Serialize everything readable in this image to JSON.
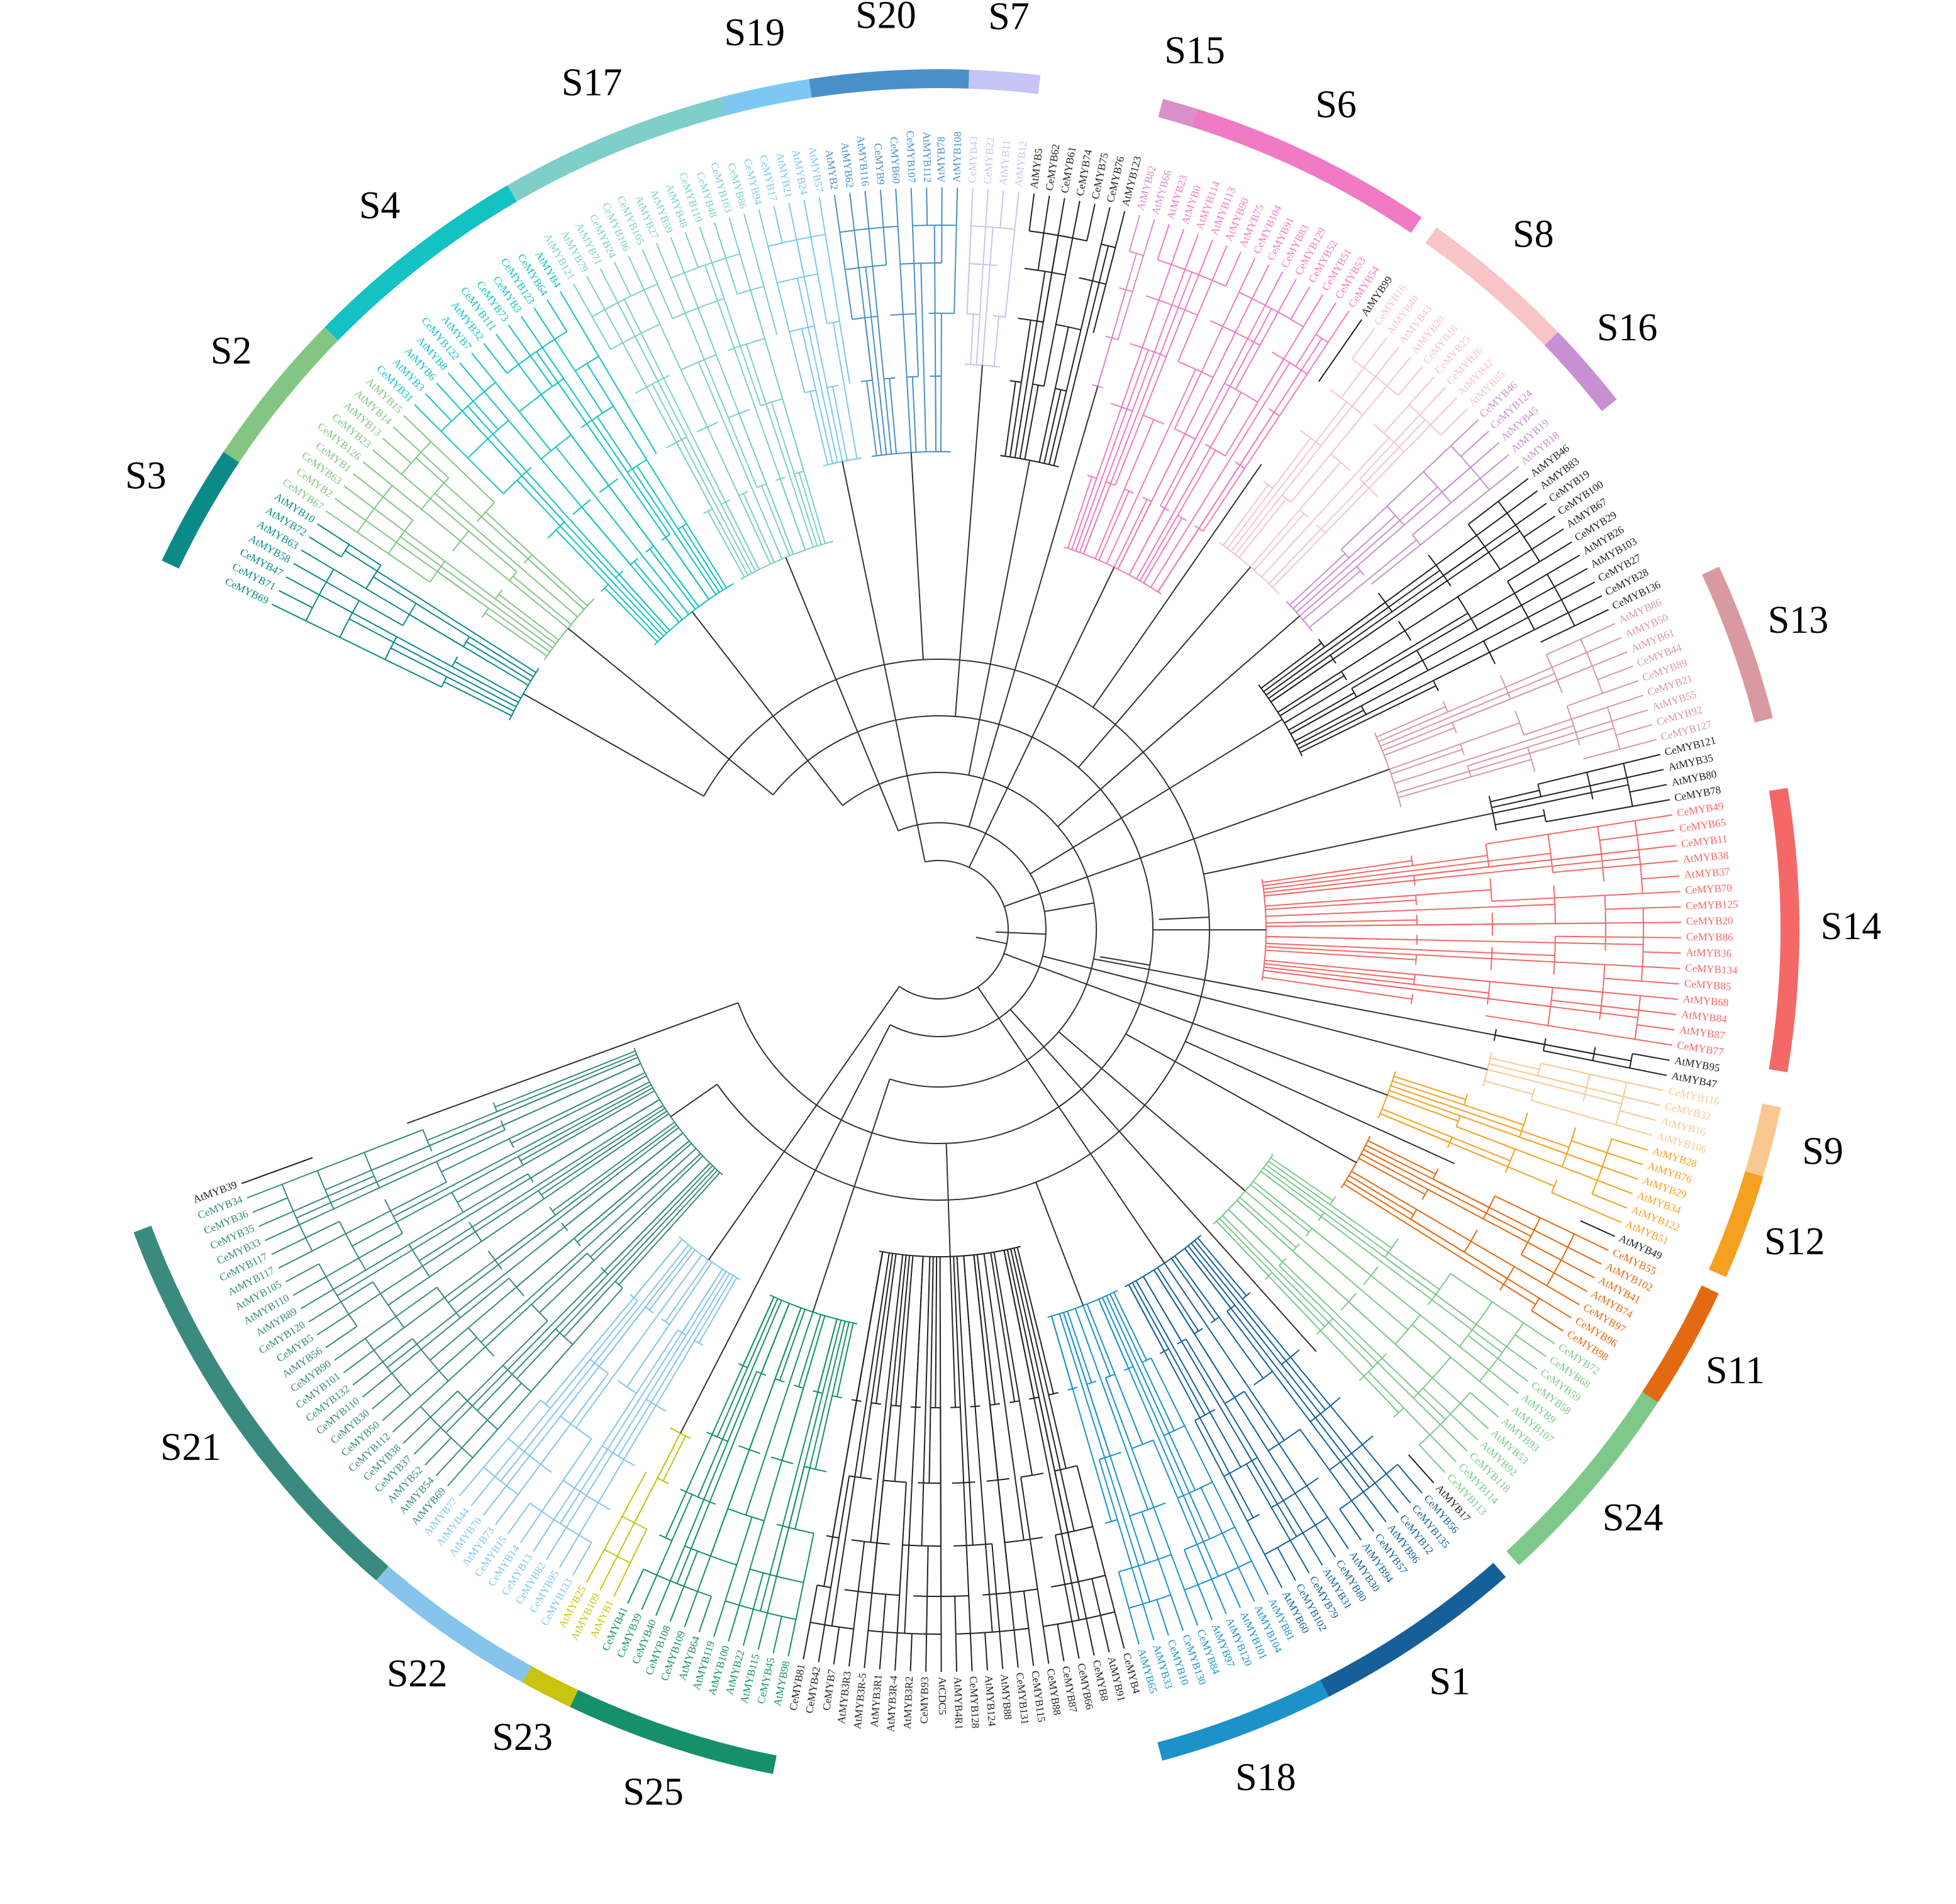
{
  "figure": {
    "type": "circular-phylogenetic-tree",
    "default_color": "#222222"
  },
  "groups": [
    {
      "id": "S3",
      "label": "S3",
      "color": "#0b8a88",
      "leaves": [
        "CeMYB69",
        "CeMYB71",
        "CeMYB47",
        "AtMYB58",
        "AtMYB63",
        "AtMYB72",
        "AtMYB10"
      ]
    },
    {
      "id": "S2",
      "label": "S2",
      "color": "#83c683",
      "leaves": [
        "CeMYB67",
        "CeMYB2",
        "CeMYB63",
        "CeMYB1",
        "CeMYB126",
        "CeMYB23",
        "AtMYB13",
        "AtMYB14",
        "AtMYB15"
      ]
    },
    {
      "id": "S4",
      "label": "S4",
      "color": "#14c2c4",
      "leaves": [
        "CeMYB31",
        "AtMYB3",
        "AtMYB6",
        "AtMYB8",
        "CeMYB122",
        "AtMYB7",
        "AtMYB32",
        "CeMYB111",
        "CeMYB73",
        "CeMYB3",
        "CeMYB123",
        "CeMYB64",
        "AtMYB4"
      ]
    },
    {
      "id": "S17",
      "label": "S17",
      "color": "#7ecfca",
      "leaves": [
        "AtMYB121",
        "AtMYB79",
        "AtMYB71",
        "CeMYB24",
        "CeMYB106",
        "CeMYB105",
        "AtMYB27",
        "AtMYB59",
        "AtMYB48",
        "CeMYB119",
        "CeMYB48",
        "CeMYB103",
        "CeMYB86"
      ]
    },
    {
      "id": "S19",
      "label": "S19",
      "color": "#7cc8f2",
      "leaves": [
        "CeMYB94",
        "CeMYB17",
        "AtMYB21",
        "AtMYB24",
        "AtMYB57"
      ]
    },
    {
      "id": "S20",
      "label": "S20",
      "color": "#4a90c8",
      "leaves": [
        "AtMYB2",
        "AtMYB62",
        "AtMYB116",
        "CeMYB9",
        "CeMYB60",
        "CeMYB107",
        "AtMYB112",
        "AtMYB78",
        "AtMYB108"
      ]
    },
    {
      "id": "S7",
      "label": "S7",
      "color": "#c6c4f4",
      "leaves": [
        "CeMYB43",
        "CeMYB22",
        "AtMYB11",
        "AtMYB12"
      ]
    },
    {
      "id": "UA",
      "label": "",
      "color": "#222222",
      "leaves": [
        "AtMYB5",
        "CeMYB62",
        "CeMYB61",
        "CeMYB74",
        "CeMYB75",
        "CeMYB76",
        "AtMYB123"
      ]
    },
    {
      "id": "S15",
      "label": "S15",
      "color": "#d890c8",
      "leaves": [
        "AtMYB82",
        "AtMYB66"
      ]
    },
    {
      "id": "S6",
      "label": "S6",
      "color": "#f07ac4",
      "leaves": [
        "AtMYB23",
        "AtMYB0",
        "AtMYB114",
        "AtMYB113",
        "AtMYB90",
        "AtMYB75",
        "CeMYB104",
        "CeMYB91",
        "CeMYB83",
        "CeMYB129",
        "CeMYB52",
        "CeMYB51",
        "CeMYB53",
        "CeMYB54"
      ]
    },
    {
      "id": "UB",
      "label": "",
      "color": "#222222",
      "leaves": [
        "AtMYB99"
      ]
    },
    {
      "id": "S8",
      "label": "S8",
      "color": "#f8c4c8",
      "leaves": [
        "CeMYB16",
        "AtMYB40",
        "AtMYB43",
        "AtMYB20",
        "CeMYB18",
        "CeMYB25",
        "CeMYB26",
        "AtMYB42",
        "AtMYB85"
      ]
    },
    {
      "id": "S16",
      "label": "S16",
      "color": "#c890d2",
      "leaves": [
        "CeMYB46",
        "CeMYB124",
        "AtMYB45",
        "AtMYB19",
        "AtMYB18"
      ]
    },
    {
      "id": "UC",
      "label": "",
      "color": "#222222",
      "leaves": [
        "AtMYB46",
        "AtMYB83",
        "CeMYB19",
        "CeMYB100",
        "AtMYB67",
        "CeMYB29",
        "AtMYB26",
        "AtMYB103",
        "CeMYB27",
        "CeMYB28",
        "CeMYB136"
      ]
    },
    {
      "id": "S13",
      "label": "S13",
      "color": "#d89aa0",
      "leaves": [
        "AtMYB86",
        "AtMYB50",
        "AtMYB61",
        "CeMYB44",
        "CeMYB89",
        "CeMYB21",
        "AtMYB55",
        "CeMYB92",
        "CeMYB127"
      ]
    },
    {
      "id": "UD",
      "label": "",
      "color": "#222222",
      "leaves": [
        "CeMYB121",
        "AtMYB35",
        "AtMYB80",
        "CeMYB78"
      ]
    },
    {
      "id": "S14",
      "label": "S14",
      "color": "#f46868",
      "leaves": [
        "CeMYB49",
        "CeMYB65",
        "CeMYB11",
        "AtMYB38",
        "AtMYB37",
        "CeMYB70",
        "CeMYB125",
        "CeMYB20",
        "CeMYB86",
        "AtMYB36",
        "CeMYB134",
        "CeMYB85",
        "AtMYB68",
        "AtMYB84",
        "AtMYB87",
        "CeMYB77"
      ]
    },
    {
      "id": "UE",
      "label": "",
      "color": "#222222",
      "leaves": [
        "AtMYB95",
        "AtMYB47"
      ]
    },
    {
      "id": "S9",
      "label": "S9",
      "color": "#f9c890",
      "leaves": [
        "CeMYB116",
        "CeMYB32",
        "AtMYB16",
        "AtMYB106"
      ]
    },
    {
      "id": "S12",
      "label": "S12",
      "color": "#f5a020",
      "leaves": [
        "AtMYB28",
        "AtMYB76",
        "AtMYB29",
        "AtMYB34",
        "AtMYB122",
        "AtMYB51"
      ]
    },
    {
      "id": "UF",
      "label": "",
      "color": "#222222",
      "leaves": [
        "AtMYB49"
      ]
    },
    {
      "id": "S11",
      "label": "S11",
      "color": "#e46a12",
      "leaves": [
        "CeMYB55",
        "AtMYB102",
        "AtMYB41",
        "AtMYB74",
        "CeMYB97",
        "CeMYB96",
        "CeMYB98"
      ]
    },
    {
      "id": "S24",
      "label": "S24",
      "color": "#7ec88a",
      "leaves": [
        "CeMYB72",
        "CeMYB68",
        "CeMYB59",
        "CeMYB58",
        "AtMYB9",
        "AtMYB107",
        "AtMYB93",
        "AtMYB53",
        "AtMYB92",
        "CeMYB118",
        "CeMYB114",
        "CeMYB113"
      ]
    },
    {
      "id": "UG",
      "label": "",
      "color": "#222222",
      "leaves": [
        "AtMYB17"
      ]
    },
    {
      "id": "S1",
      "label": "S1",
      "color": "#16609a",
      "leaves": [
        "CeMYB56",
        "CeMYB135",
        "CeMYB12",
        "AtMYB96",
        "CeMYB57",
        "AtMYB94",
        "AtMYB30",
        "CeMYB80",
        "AtMYB31",
        "CeMYB79",
        "CeMYB102",
        "AtMYB60"
      ]
    },
    {
      "id": "S18",
      "label": "S18",
      "color": "#1c92c8",
      "leaves": [
        "AtMYB81",
        "AtMYB104",
        "AtMYB101",
        "AtMYB120",
        "AtMYB97",
        "CeMYB84",
        "CeMYB130",
        "CeMYB10",
        "AtMYB33",
        "AtMYB65"
      ]
    },
    {
      "id": "UH",
      "label": "",
      "color": "#222222",
      "leaves": [
        "CeMYB4",
        "AtMYB91",
        "CeMYB8",
        "CeMYB66",
        "CeMYB87",
        "CeMYB88",
        "CeMYB115",
        "CeMYB131",
        "AtMYB88",
        "AtMYB124",
        "CeMYB128",
        "AtMYB4R1",
        "AtCDC5",
        "CeMYB93",
        "AtMYB3R2",
        "AtMYB3R-4",
        "AtMYB3R1",
        "AtMYB3R-5",
        "AtMYB3R3",
        "CeMYB7",
        "CeMYB42",
        "CeMYB81"
      ]
    },
    {
      "id": "S25",
      "label": "S25",
      "color": "#15906a",
      "leaves": [
        "AtMYB98",
        "CeMYB45",
        "AtMYB115",
        "AtMYB22",
        "AtMYB100",
        "AtMYB119",
        "AtMYB64",
        "CeMYB109",
        "CeMYB108",
        "CeMYB40",
        "CeMYB39",
        "CeMYB41"
      ]
    },
    {
      "id": "S23",
      "label": "S23",
      "color": "#c8c410",
      "leaves": [
        "AtMYB1",
        "AtMYB109",
        "AtMYB25"
      ]
    },
    {
      "id": "S22",
      "label": "S22",
      "color": "#86c4ec",
      "leaves": [
        "CeMYB133",
        "CeMYB95",
        "CeMYB82",
        "CeMYB13",
        "CeMYB14",
        "CeMYB15",
        "AtMYB73",
        "AtMYB70",
        "AtMYB44",
        "AtMYB77"
      ]
    },
    {
      "id": "S21",
      "label": "S21",
      "color": "#3a8a80",
      "leaves": [
        "AtMYB69",
        "AtMYB54",
        "AtMYB52",
        "CeMYB37",
        "CeMYB38",
        "CeMYB112",
        "CeMYB50",
        "CeMYB30",
        "CeMYB110",
        "CeMYB132",
        "CeMYB101",
        "CeMYB90",
        "AtMYB56",
        "CeMYB5",
        "CeMYB120",
        "AtMYB89",
        "AtMYB110",
        "AtMYB105",
        "AtMYB117",
        "CeMYB117",
        "CeMYB33",
        "CeMYB35",
        "CeMYB36",
        "CeMYB34"
      ]
    },
    {
      "id": "UI",
      "label": "",
      "color": "#222222",
      "leaves": [
        "AtMYB39"
      ]
    }
  ]
}
